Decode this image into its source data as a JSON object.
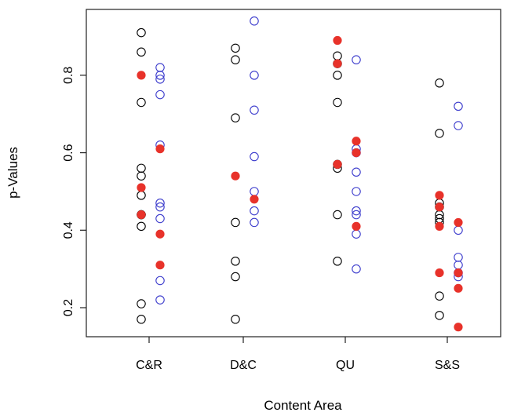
{
  "chart_data": {
    "type": "scatter",
    "title": "",
    "xlabel": "Content Area",
    "ylabel": "p-Values",
    "categories": [
      "C&R",
      "D&C",
      "QU",
      "S&S"
    ],
    "ylim": [
      0.125,
      0.97
    ],
    "yticks": [
      "0.2",
      "0.4",
      "0.6",
      "0.8"
    ],
    "grid": false,
    "legend": "none",
    "series": [
      {
        "style": "open-circle",
        "color": "#000000",
        "offset": "left",
        "values": [
          [
            0.91,
            0.86,
            0.73,
            0.56,
            0.54,
            0.49,
            0.44,
            0.44,
            0.41,
            0.21,
            0.17
          ],
          [
            0.87,
            0.84,
            0.69,
            0.42,
            0.32,
            0.28,
            0.17
          ],
          [
            0.85,
            0.83,
            0.8,
            0.73,
            0.57,
            0.56,
            0.44,
            0.32
          ],
          [
            0.78,
            0.65,
            0.47,
            0.46,
            0.44,
            0.43,
            0.42,
            0.23,
            0.18
          ]
        ]
      },
      {
        "style": "open-circle",
        "color": "#3a3acc",
        "offset": "right",
        "values": [
          [
            0.82,
            0.8,
            0.79,
            0.75,
            0.62,
            0.47,
            0.46,
            0.43,
            0.27,
            0.22
          ],
          [
            0.94,
            0.8,
            0.71,
            0.59,
            0.5,
            0.45,
            0.42
          ],
          [
            0.84,
            0.61,
            0.6,
            0.55,
            0.5,
            0.45,
            0.44,
            0.39,
            0.3
          ],
          [
            0.72,
            0.67,
            0.4,
            0.33,
            0.31,
            0.29,
            0.28
          ]
        ]
      },
      {
        "style": "filled-circle",
        "color": "#e8322a",
        "offset": "mixed",
        "values": [
          [
            {
              "y": 0.8,
              "side": "left"
            },
            {
              "y": 0.51,
              "side": "left"
            },
            {
              "y": 0.44,
              "side": "left"
            },
            {
              "y": 0.61,
              "side": "right"
            },
            {
              "y": 0.39,
              "side": "right"
            },
            {
              "y": 0.31,
              "side": "right"
            }
          ],
          [
            {
              "y": 0.54,
              "side": "left"
            },
            {
              "y": 0.48,
              "side": "right"
            }
          ],
          [
            {
              "y": 0.89,
              "side": "left"
            },
            {
              "y": 0.83,
              "side": "left"
            },
            {
              "y": 0.57,
              "side": "left"
            },
            {
              "y": 0.63,
              "side": "right"
            },
            {
              "y": 0.6,
              "side": "right"
            },
            {
              "y": 0.41,
              "side": "right"
            }
          ],
          [
            {
              "y": 0.49,
              "side": "left"
            },
            {
              "y": 0.46,
              "side": "left"
            },
            {
              "y": 0.41,
              "side": "left"
            },
            {
              "y": 0.29,
              "side": "left"
            },
            {
              "y": 0.42,
              "side": "right"
            },
            {
              "y": 0.29,
              "side": "right"
            },
            {
              "y": 0.25,
              "side": "right"
            },
            {
              "y": 0.15,
              "side": "right"
            }
          ]
        ]
      }
    ]
  }
}
